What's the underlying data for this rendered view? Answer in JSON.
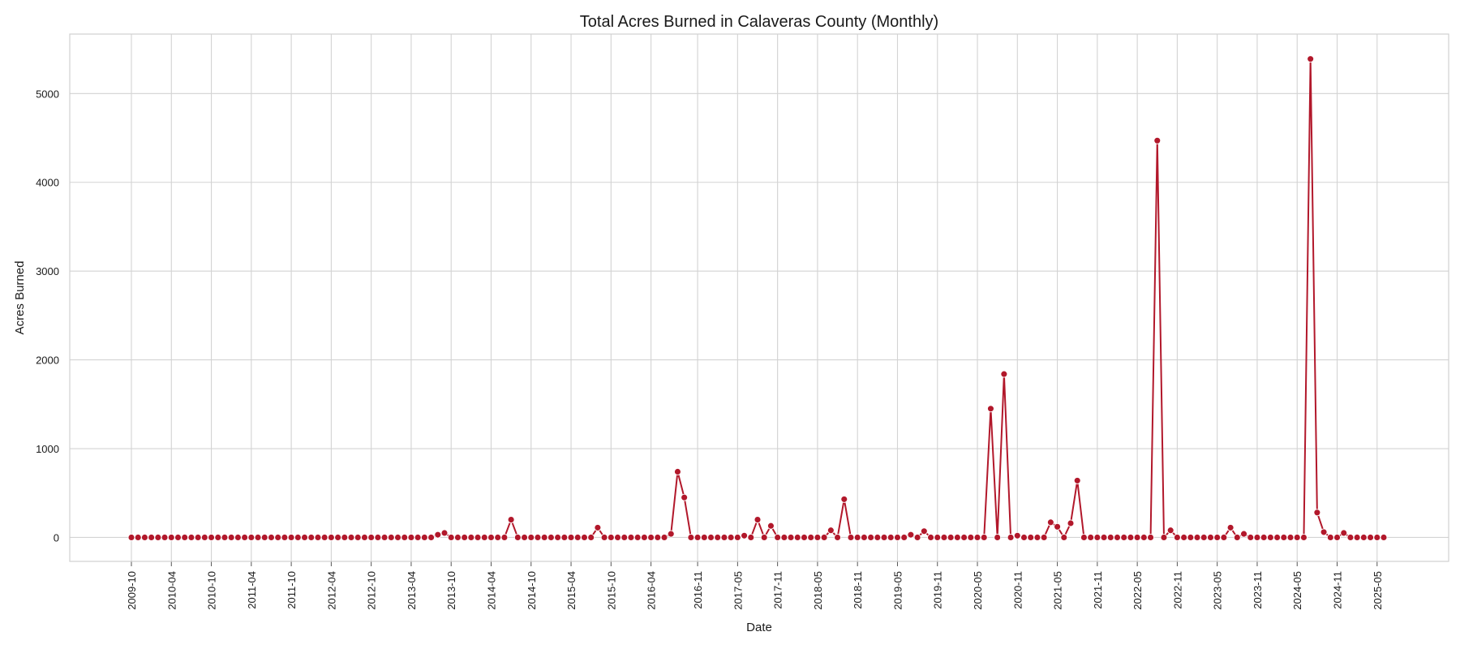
{
  "chart_data": {
    "type": "line",
    "title": "Total Acres Burned in Calaveras County (Monthly)",
    "xlabel": "Date",
    "ylabel": "Acres Burned",
    "ylim": [
      -270,
      5670
    ],
    "yticks": [
      0,
      1000,
      2000,
      3000,
      4000,
      5000
    ],
    "xtick_labels": [
      "2009-10",
      "2010-04",
      "2010-10",
      "2011-04",
      "2011-10",
      "2012-04",
      "2012-10",
      "2013-04",
      "2013-10",
      "2014-04",
      "2014-10",
      "2015-04",
      "2015-10",
      "2016-04",
      "2016-11",
      "2017-05",
      "2017-11",
      "2018-05",
      "2018-11",
      "2019-05",
      "2019-11",
      "2020-05",
      "2020-11",
      "2021-05",
      "2021-11",
      "2022-05",
      "2022-11",
      "2023-05",
      "2023-11",
      "2024-05",
      "2024-11",
      "2025-05"
    ],
    "grid": true,
    "legend": "none",
    "line_color": "#b2182b",
    "series": [
      {
        "x_start": "2009-10",
        "x_end": "2025-06",
        "points": [
          [
            "2013-08",
            30
          ],
          [
            "2013-09",
            50
          ],
          [
            "2014-07",
            200
          ],
          [
            "2015-08",
            110
          ],
          [
            "2016-07",
            40
          ],
          [
            "2016-08",
            740
          ],
          [
            "2016-09",
            450
          ],
          [
            "2017-06",
            20
          ],
          [
            "2017-08",
            200
          ],
          [
            "2017-10",
            130
          ],
          [
            "2018-07",
            80
          ],
          [
            "2018-09",
            430
          ],
          [
            "2019-07",
            30
          ],
          [
            "2019-09",
            70
          ],
          [
            "2020-07",
            1450
          ],
          [
            "2020-09",
            1840
          ],
          [
            "2020-11",
            20
          ],
          [
            "2021-04",
            170
          ],
          [
            "2021-05",
            120
          ],
          [
            "2021-07",
            160
          ],
          [
            "2021-08",
            640
          ],
          [
            "2022-08",
            4470
          ],
          [
            "2022-10",
            80
          ],
          [
            "2023-07",
            110
          ],
          [
            "2023-09",
            40
          ],
          [
            "2024-07",
            5390
          ],
          [
            "2024-08",
            280
          ],
          [
            "2024-09",
            60
          ],
          [
            "2024-12",
            50
          ]
        ]
      }
    ]
  }
}
